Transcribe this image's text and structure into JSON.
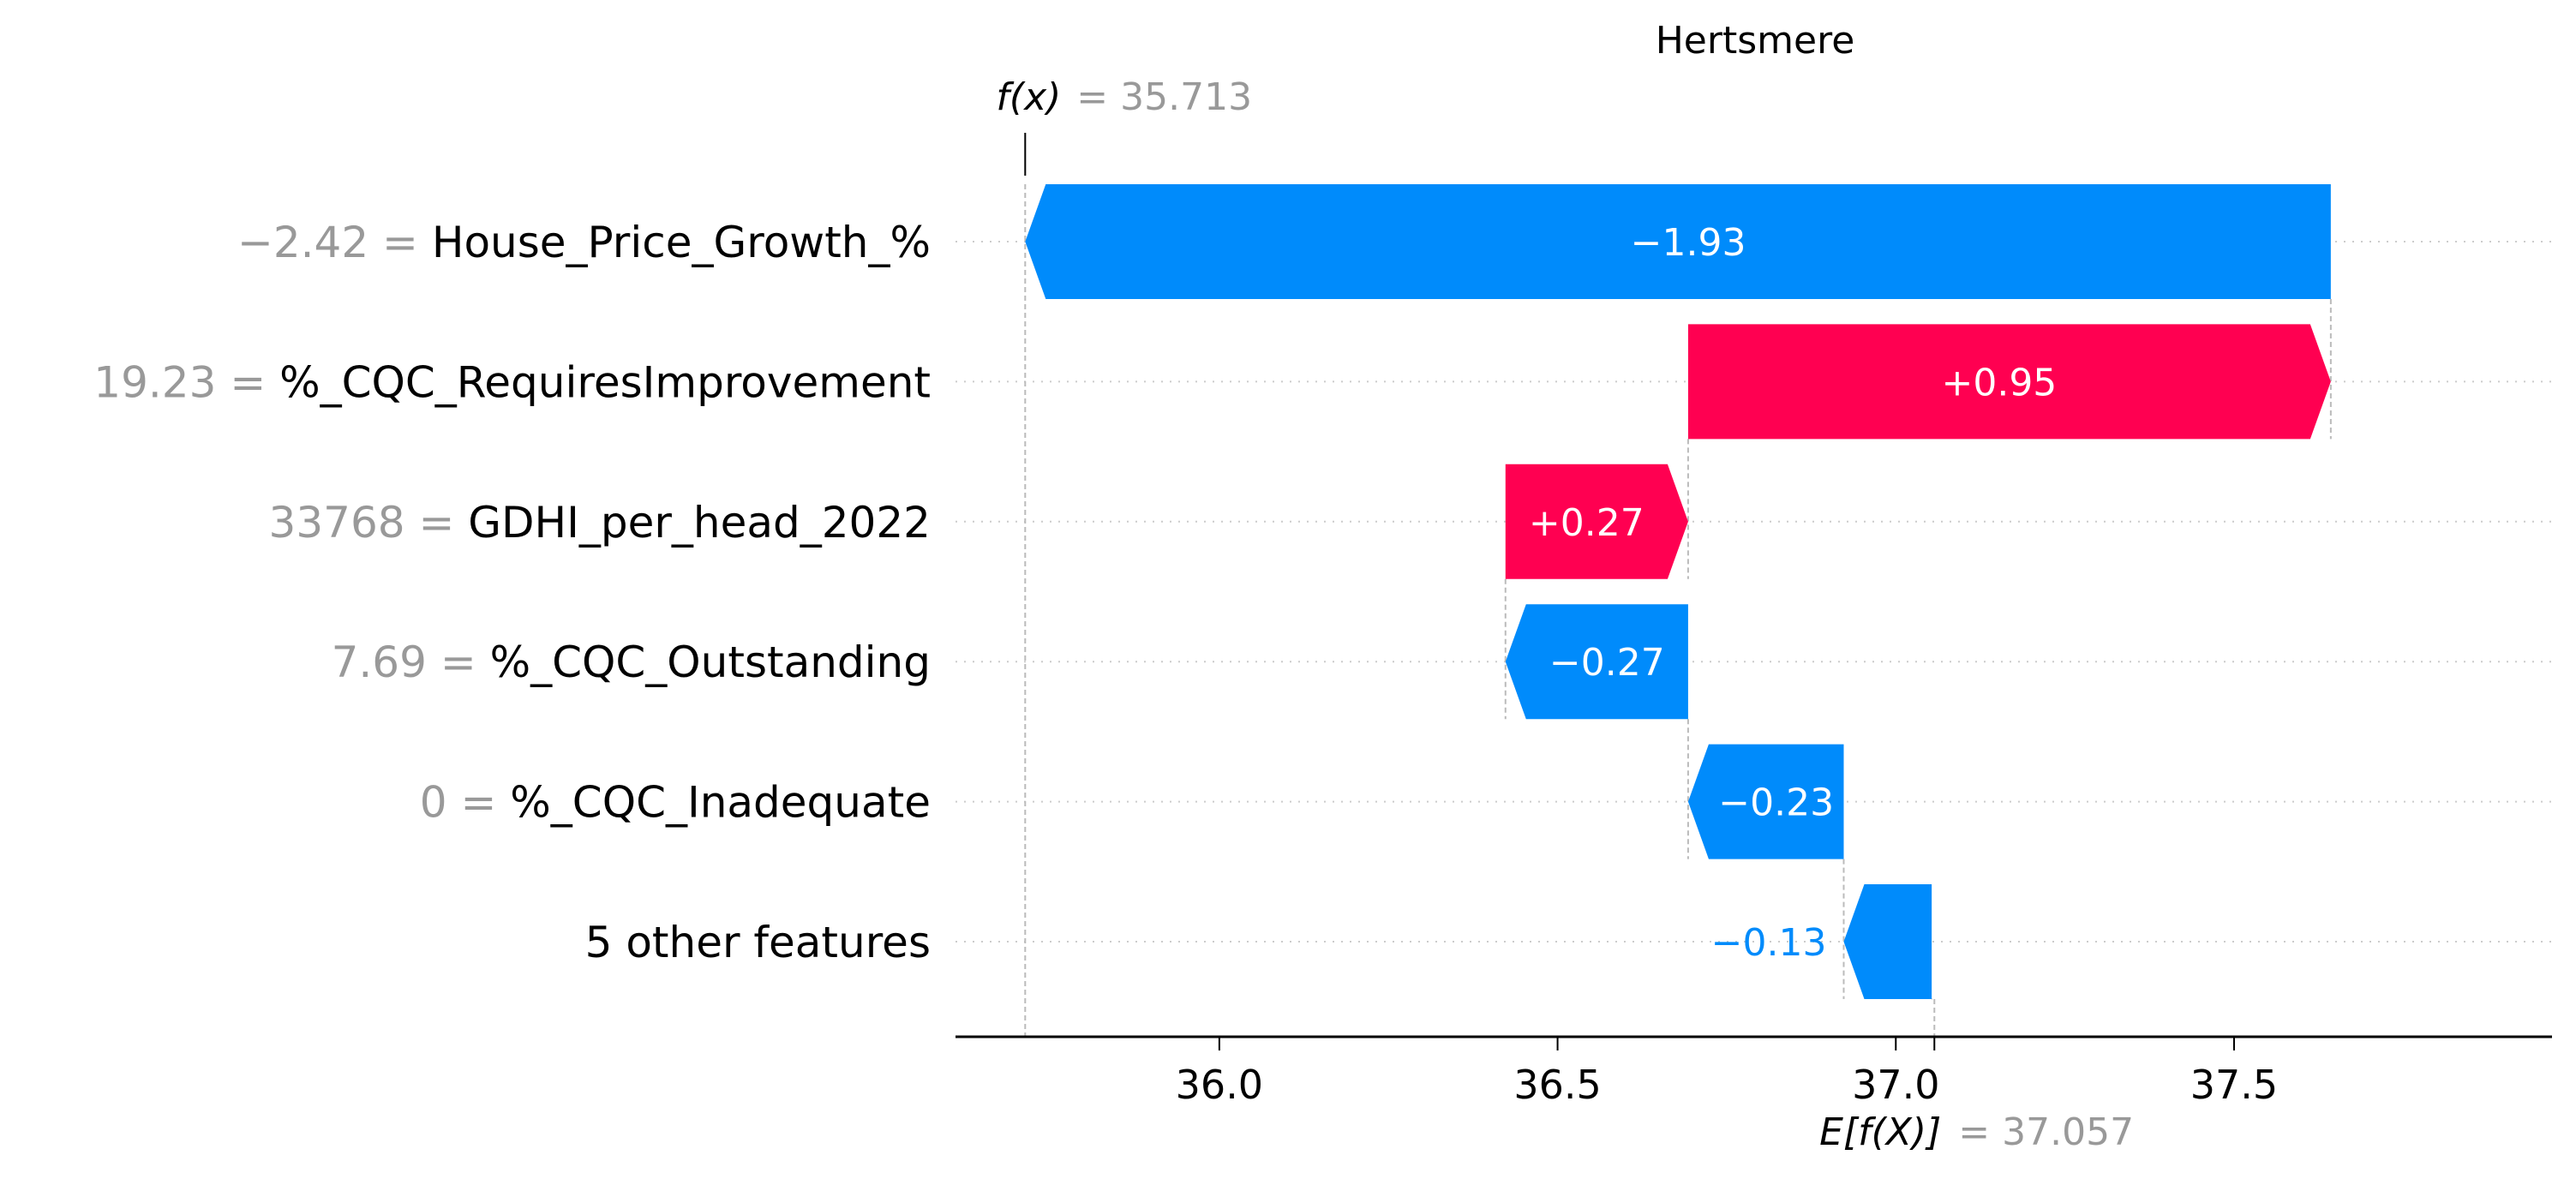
{
  "chart_data": {
    "type": "waterfall",
    "title": "Hertsmere",
    "fx": {
      "label": "f(x)",
      "eq": "= 35.713",
      "value": 35.713
    },
    "base": {
      "label": "E[f(X)]",
      "eq": "= 37.057",
      "value": 37.057
    },
    "features": [
      {
        "value_text": "−2.42 =",
        "name": "House_Price_Growth_%",
        "shap": -1.93,
        "shap_label": "−1.93"
      },
      {
        "value_text": "19.23 =",
        "name": "%_CQC_RequiresImprovement",
        "shap": 0.95,
        "shap_label": "+0.95"
      },
      {
        "value_text": "33768 =",
        "name": "GDHI_per_head_2022",
        "shap": 0.27,
        "shap_label": "+0.27"
      },
      {
        "value_text": "7.69 =",
        "name": "%_CQC_Outstanding",
        "shap": -0.27,
        "shap_label": "−0.27"
      },
      {
        "value_text": "0 =",
        "name": "%_CQC_Inadequate",
        "shap": -0.23,
        "shap_label": "−0.23"
      },
      {
        "value_text": "",
        "name": "5 other features",
        "shap": -0.13,
        "shap_label": "−0.13"
      }
    ],
    "xticks": [
      {
        "value": 36.0,
        "label": "36.0"
      },
      {
        "value": 36.5,
        "label": "36.5"
      },
      {
        "value": 37.0,
        "label": "37.0"
      },
      {
        "value": 37.5,
        "label": "37.5"
      }
    ],
    "xlim": [
      35.61,
      37.97
    ],
    "grid": "dotted horizontal per feature row",
    "colors": {
      "positive": "#ff0051",
      "negative": "#008bfb",
      "muted": "#999999",
      "text": "#000000"
    }
  }
}
